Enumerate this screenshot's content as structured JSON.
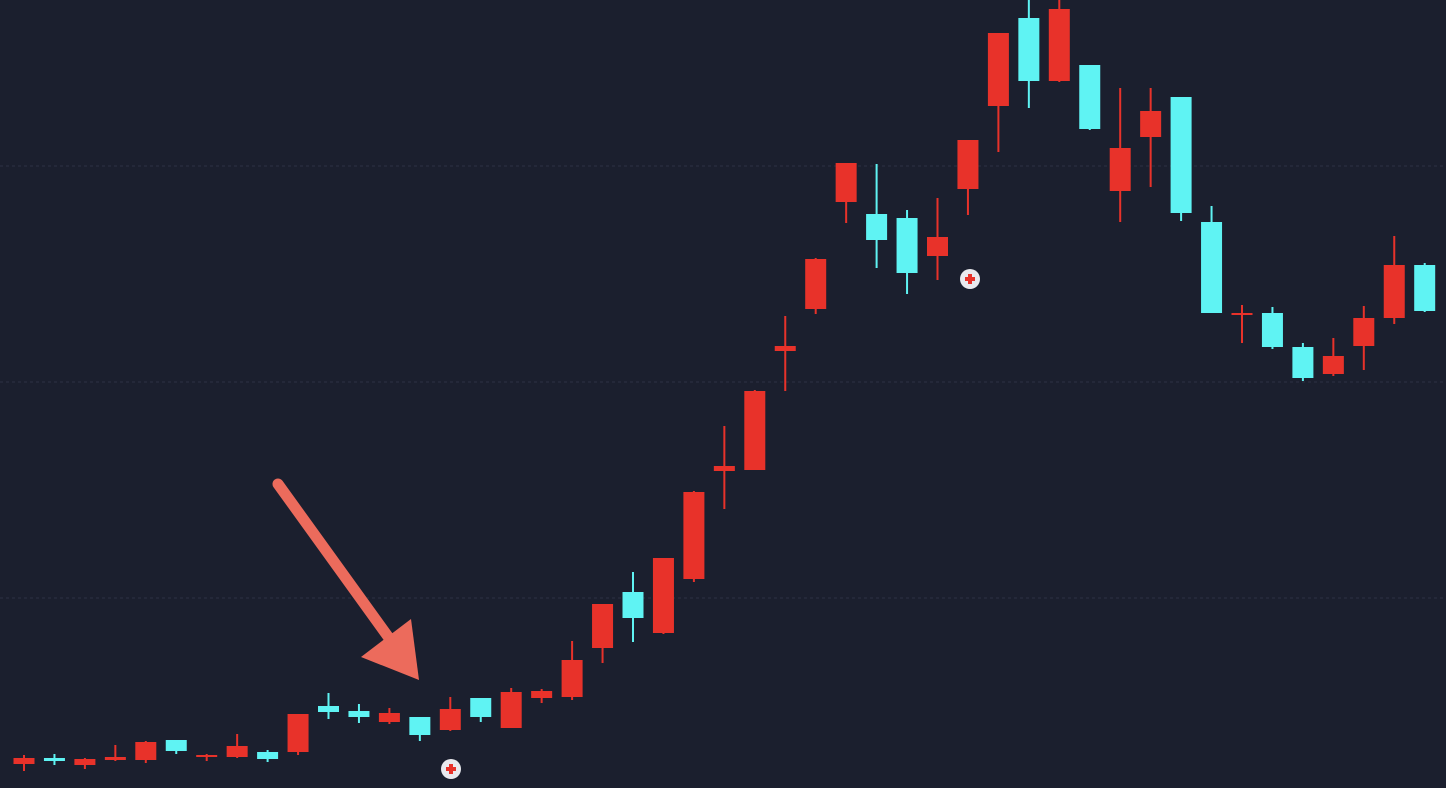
{
  "chart_data": {
    "type": "candlestick",
    "up_color": "#e8322a",
    "down_color": "#5ff3f3",
    "ylim": [
      0,
      788
    ],
    "yticks": [
      190,
      406,
      622
    ],
    "grid": true,
    "open": [
      24,
      30,
      23,
      28,
      28,
      48,
      31,
      31,
      36,
      36,
      82,
      77,
      66,
      71,
      58,
      90,
      60,
      90,
      91,
      140,
      196,
      155,
      209,
      317,
      318,
      437,
      479,
      586,
      574,
      570,
      532,
      599,
      682,
      770,
      707,
      723,
      597,
      651,
      691,
      566,
      473,
      475,
      441,
      414,
      442,
      470,
      523
    ],
    "high": [
      33,
      34,
      30,
      43,
      47,
      48,
      34,
      54,
      38,
      74,
      95,
      84,
      80,
      71,
      91,
      90,
      100,
      99,
      147,
      184,
      216,
      230,
      297,
      362,
      398,
      472,
      530,
      625,
      624,
      578,
      590,
      648,
      755,
      788,
      788,
      723,
      700,
      700,
      691,
      582,
      483,
      481,
      445,
      450,
      482,
      552,
      525
    ],
    "low": [
      17,
      23,
      19,
      27,
      25,
      34,
      27,
      30,
      26,
      33,
      69,
      65,
      64,
      47,
      57,
      66,
      60,
      85,
      88,
      125,
      146,
      154,
      206,
      279,
      318,
      397,
      474,
      565,
      520,
      494,
      508,
      573,
      636,
      680,
      706,
      658,
      566,
      601,
      567,
      475,
      445,
      439,
      407,
      412,
      418,
      464,
      476
    ],
    "close": [
      30,
      27,
      29,
      31,
      46,
      37,
      33,
      42,
      29,
      74,
      76,
      71,
      75,
      53,
      79,
      71,
      96,
      97,
      128,
      184,
      170,
      230,
      296,
      322,
      397,
      442,
      529,
      625,
      548,
      515,
      551,
      648,
      755,
      707,
      779,
      659,
      640,
      677,
      575,
      475,
      475,
      441,
      410,
      432,
      470,
      523,
      477
    ]
  }
}
